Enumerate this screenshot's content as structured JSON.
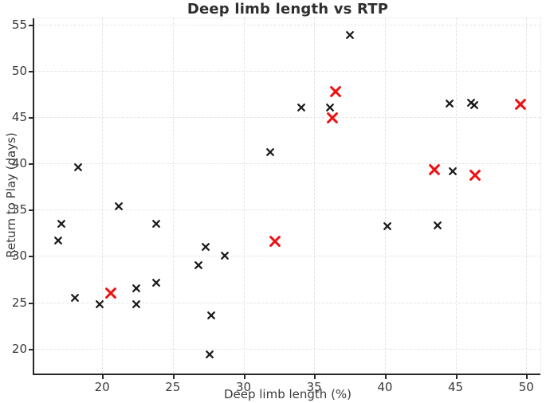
{
  "figure": {
    "colors": {
      "background": "#ffffff",
      "black_marker": "#1a1a1a",
      "red_marker": "#ee1111",
      "grid": "#e4e4e4",
      "spine": "#262626",
      "tick_text": "#3a3a3a",
      "title_text": "#2f2f2f"
    }
  },
  "chart_data": {
    "type": "scatter",
    "title": "Deep limb length vs RTP",
    "xlabel": "Deep limb length (%)",
    "ylabel": "Return to Play (days)",
    "xlim": [
      15.2,
      51.0
    ],
    "ylim": [
      17.3,
      55.7
    ],
    "xticks": [
      20,
      25,
      30,
      35,
      40,
      45,
      50
    ],
    "yticks": [
      20,
      25,
      30,
      35,
      40,
      45,
      50,
      55
    ],
    "grid": true,
    "legend": false,
    "marker_style": "x",
    "series": [
      {
        "name": "black-x-points",
        "color": "#1a1a1a",
        "marker_size": 11,
        "stroke_width": 2.2,
        "points": [
          [
            17.1,
            33.5
          ],
          [
            16.9,
            31.7
          ],
          [
            18.3,
            39.6
          ],
          [
            18.1,
            25.5
          ],
          [
            19.8,
            24.8
          ],
          [
            21.2,
            35.4
          ],
          [
            22.4,
            26.5
          ],
          [
            22.4,
            24.8
          ],
          [
            23.8,
            33.5
          ],
          [
            23.8,
            27.1
          ],
          [
            26.8,
            29.0
          ],
          [
            27.3,
            31.0
          ],
          [
            27.7,
            23.6
          ],
          [
            27.6,
            19.4
          ],
          [
            28.7,
            30.0
          ],
          [
            31.9,
            41.2
          ],
          [
            34.1,
            46.1
          ],
          [
            36.1,
            46.1
          ],
          [
            37.5,
            53.9
          ],
          [
            40.2,
            33.2
          ],
          [
            43.7,
            33.3
          ],
          [
            44.6,
            46.5
          ],
          [
            46.1,
            46.6
          ],
          [
            46.3,
            46.3
          ],
          [
            44.8,
            39.2
          ]
        ]
      },
      {
        "name": "red-x-points",
        "color": "#ee1111",
        "marker_size": 15,
        "stroke_width": 3,
        "points": [
          [
            20.6,
            26.0
          ],
          [
            32.2,
            31.6
          ],
          [
            36.5,
            47.8
          ],
          [
            36.3,
            44.9
          ],
          [
            43.5,
            39.3
          ],
          [
            46.4,
            38.7
          ],
          [
            49.6,
            46.4
          ]
        ]
      }
    ]
  }
}
